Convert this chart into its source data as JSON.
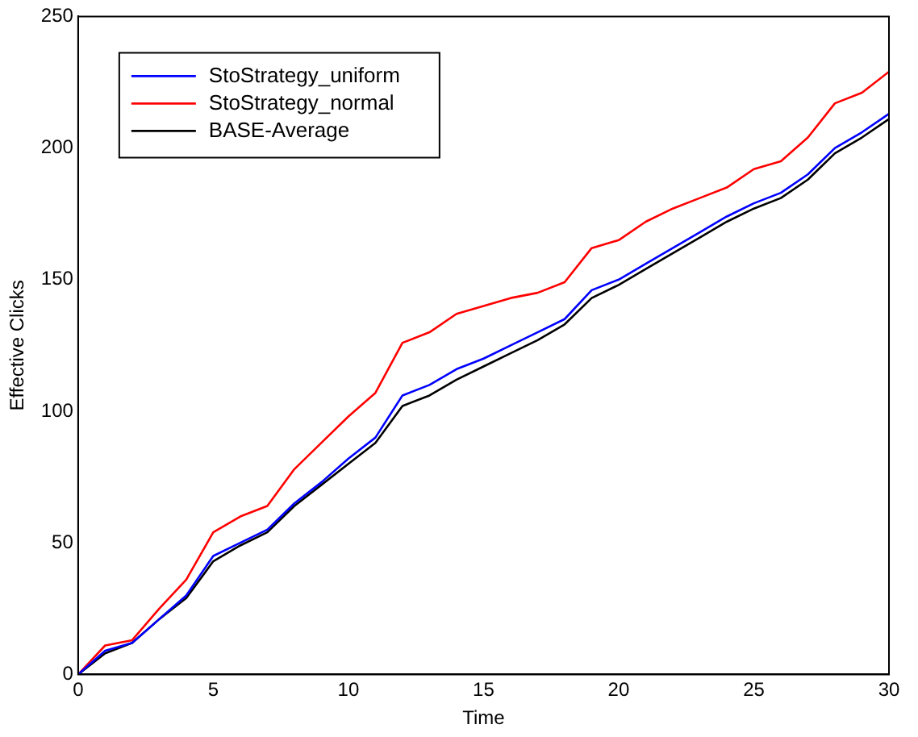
{
  "chart_data": {
    "type": "line",
    "xlabel": "Time",
    "ylabel": "Effective Clicks",
    "x": [
      0,
      1,
      2,
      3,
      4,
      5,
      6,
      7,
      8,
      9,
      10,
      11,
      12,
      13,
      14,
      15,
      16,
      17,
      18,
      19,
      20,
      21,
      22,
      23,
      24,
      25,
      26,
      27,
      28,
      29,
      30
    ],
    "series": [
      {
        "name": "StoStrategy_uniform",
        "color": "#0000ff",
        "values": [
          0,
          9,
          12,
          21,
          30,
          45,
          50,
          55,
          65,
          73,
          82,
          90,
          106,
          110,
          116,
          120,
          125,
          130,
          135,
          146,
          150,
          156,
          162,
          168,
          174,
          179,
          183,
          190,
          200,
          206,
          213
        ]
      },
      {
        "name": "StoStrategy_normal",
        "color": "#ff0000",
        "values": [
          0,
          11,
          13,
          25,
          36,
          54,
          60,
          64,
          78,
          88,
          98,
          107,
          126,
          130,
          137,
          140,
          143,
          145,
          149,
          162,
          165,
          172,
          177,
          181,
          185,
          192,
          195,
          204,
          217,
          221,
          229
        ]
      },
      {
        "name": "BASE-Average",
        "color": "#000000",
        "values": [
          0,
          8,
          12,
          21,
          29,
          43,
          49,
          54,
          64,
          72,
          80,
          88,
          102,
          106,
          112,
          117,
          122,
          127,
          133,
          143,
          148,
          154,
          160,
          166,
          172,
          177,
          181,
          188,
          198,
          204,
          211
        ]
      }
    ],
    "xlim": [
      0,
      30
    ],
    "xticks": [
      0,
      5,
      10,
      15,
      20,
      25,
      30
    ],
    "ylim": [
      0,
      250
    ],
    "yticks": [
      0,
      50,
      100,
      150,
      200,
      250
    ],
    "grid": false,
    "legend": "top left",
    "marker": "none",
    "line_style": "solid"
  }
}
